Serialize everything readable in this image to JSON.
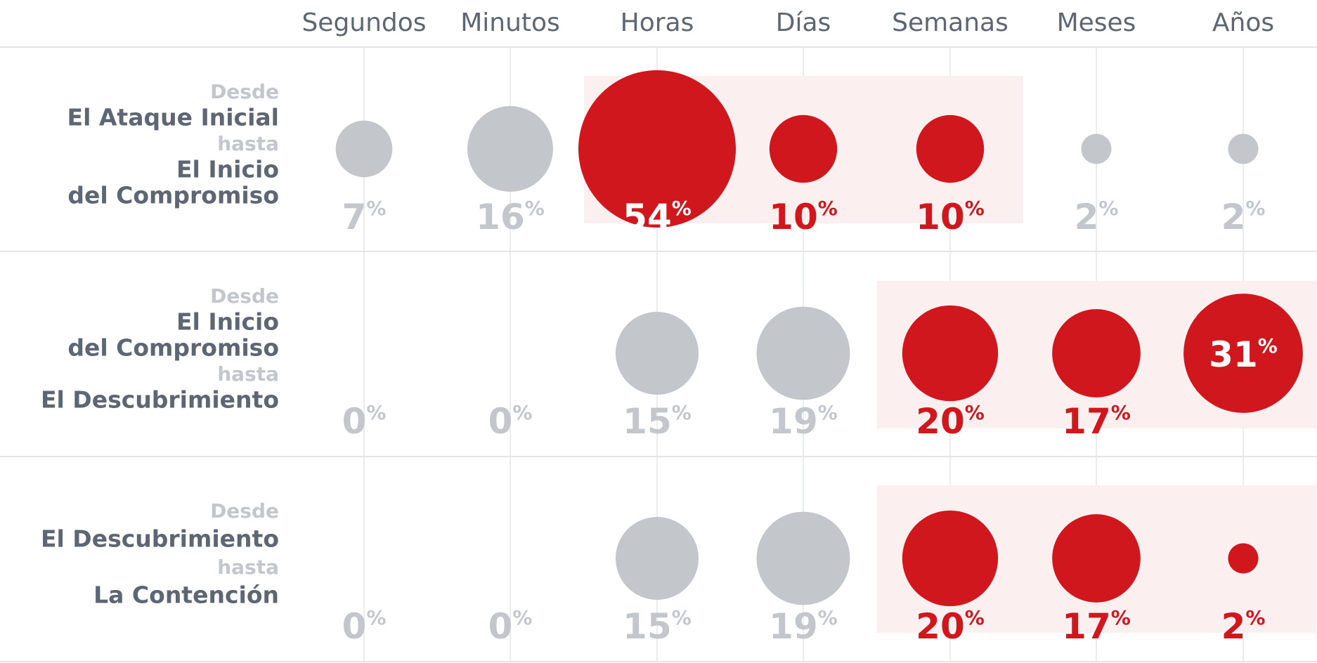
{
  "chart_data": {
    "type": "bubble-grid",
    "columns": [
      "Segundos",
      "Minutos",
      "Horas",
      "Días",
      "Semanas",
      "Meses",
      "Años"
    ],
    "unit": "%",
    "colors": {
      "highlight": "#cf171d",
      "muted": "#c3c7cb",
      "band": "#fcefef",
      "text": "#5e6673",
      "grid": "#e3e5e8"
    },
    "rows": [
      {
        "label": [
          {
            "text": "Desde",
            "sub": true
          },
          {
            "text": "El Ataque Inicial",
            "sub": false
          },
          {
            "text": "hasta",
            "sub": true
          },
          {
            "text": "El Inicio",
            "sub": false
          },
          {
            "text": "del Compromiso",
            "sub": false
          }
        ],
        "values": [
          7,
          16,
          54,
          10,
          10,
          2,
          2
        ],
        "highlight": [
          false,
          false,
          true,
          true,
          true,
          false,
          false
        ],
        "band": [
          2,
          4
        ]
      },
      {
        "label": [
          {
            "text": "Desde",
            "sub": true
          },
          {
            "text": "El Inicio",
            "sub": false
          },
          {
            "text": "del Compromiso",
            "sub": false
          },
          {
            "text": "hasta",
            "sub": true
          },
          {
            "text": "El Descubrimiento",
            "sub": false
          }
        ],
        "values": [
          0,
          0,
          15,
          19,
          20,
          17,
          31
        ],
        "highlight": [
          false,
          false,
          false,
          false,
          true,
          true,
          true
        ],
        "band": [
          4,
          6
        ]
      },
      {
        "label": [
          {
            "text": "Desde",
            "sub": true
          },
          {
            "text": "El Descubrimiento",
            "sub": false
          },
          {
            "text": "hasta",
            "sub": true
          },
          {
            "text": "La Contención",
            "sub": false
          }
        ],
        "values": [
          0,
          0,
          15,
          19,
          20,
          17,
          2
        ],
        "highlight": [
          false,
          false,
          false,
          false,
          true,
          true,
          true
        ],
        "band": [
          4,
          6
        ]
      }
    ]
  }
}
